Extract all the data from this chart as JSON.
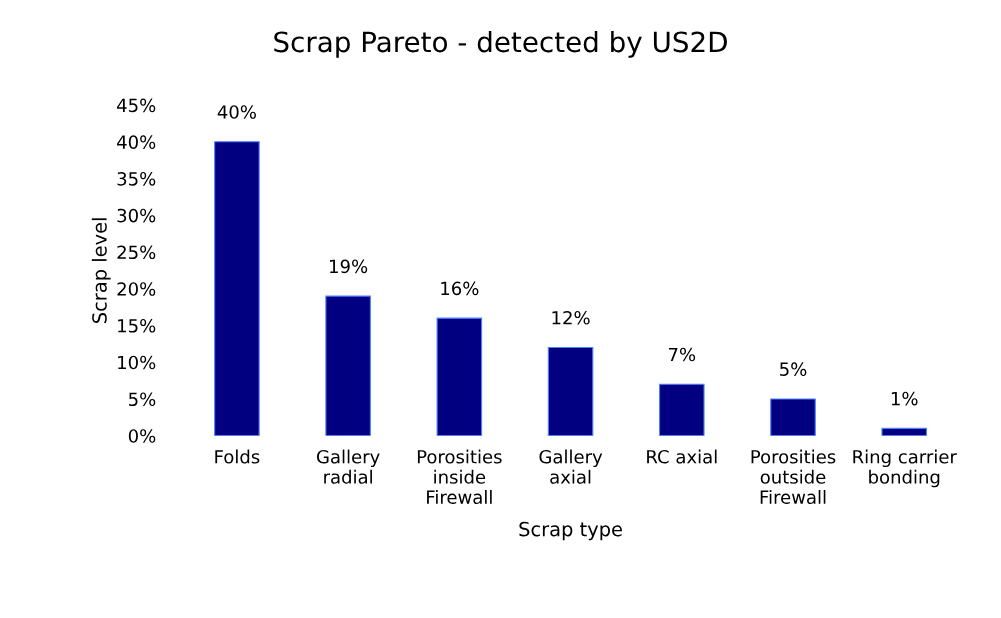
{
  "chart_data": {
    "type": "bar",
    "title": "Scrap Pareto - detected by US2D",
    "xlabel": "Scrap type",
    "ylabel": "Scrap level",
    "categories": [
      "Folds",
      "Gallery\nradial",
      "Porosities\ninside\nFirewall",
      "Gallery\naxial",
      "RC axial",
      "Porosities\noutside\nFirewall",
      "Ring carrier\nbonding"
    ],
    "values": [
      40,
      19,
      16,
      12,
      7,
      5,
      1
    ],
    "value_labels": [
      "40%",
      "19%",
      "16%",
      "12%",
      "7%",
      "5%",
      "1%"
    ],
    "color": "#000080",
    "ylim": [
      0,
      45
    ],
    "yticks": [
      {
        "value": 0,
        "label": "0%"
      },
      {
        "value": 5,
        "label": "5%"
      },
      {
        "value": 10,
        "label": "10%"
      },
      {
        "value": 15,
        "label": "15%"
      },
      {
        "value": 20,
        "label": "20%"
      },
      {
        "value": 25,
        "label": "25%"
      },
      {
        "value": 30,
        "label": "30%"
      },
      {
        "value": 35,
        "label": "35%"
      },
      {
        "value": 40,
        "label": "40%"
      },
      {
        "value": 45,
        "label": "45%"
      }
    ],
    "grid": false,
    "legend": false
  }
}
